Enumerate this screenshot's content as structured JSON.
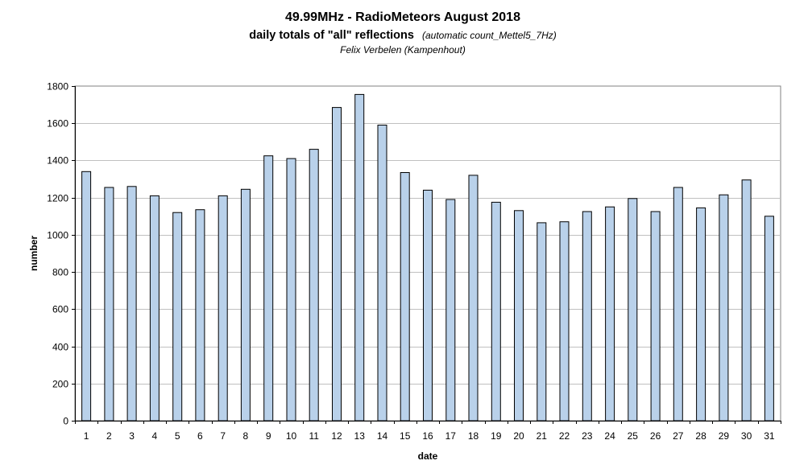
{
  "chart_data": {
    "type": "bar",
    "title": "49.99MHz - RadioMeteors August 2018",
    "subtitle": "daily totals of \"all\" reflections",
    "subtitle_note": "(automatic count_Mettel5_7Hz)",
    "author": "Felix Verbelen (Kampenhout)",
    "xlabel": "date",
    "ylabel": "number",
    "ylim": [
      0,
      1800
    ],
    "yticks": [
      0,
      200,
      400,
      600,
      800,
      1000,
      1200,
      1400,
      1600,
      1800
    ],
    "grid": true,
    "legend": "none",
    "colors": {
      "bar_fill": "#b9d1ea",
      "bar_stroke": "#000000",
      "grid": "#c0c0c0",
      "plot_bg": "#ffffff"
    },
    "categories": [
      "1",
      "2",
      "3",
      "4",
      "5",
      "6",
      "7",
      "8",
      "9",
      "10",
      "11",
      "12",
      "13",
      "14",
      "15",
      "16",
      "17",
      "18",
      "19",
      "20",
      "21",
      "22",
      "23",
      "24",
      "25",
      "26",
      "27",
      "28",
      "29",
      "30",
      "31"
    ],
    "values": [
      1340,
      1255,
      1260,
      1210,
      1120,
      1135,
      1210,
      1245,
      1425,
      1410,
      1460,
      1685,
      1755,
      1590,
      1335,
      1240,
      1190,
      1320,
      1175,
      1130,
      1065,
      1070,
      1125,
      1150,
      1195,
      1125,
      1255,
      1145,
      1215,
      1295,
      1100
    ]
  }
}
